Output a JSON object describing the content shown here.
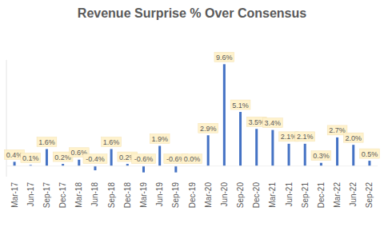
{
  "chart_data": {
    "type": "bar",
    "title": "Revenue Surprise % Over Consensus",
    "categories": [
      "Mar-17",
      "Jun-17",
      "Sep-17",
      "Dec-17",
      "Mar-18",
      "Jun-18",
      "Sep-18",
      "Dec-18",
      "Mar-19",
      "Jun-19",
      "Sep-19",
      "Dec-19",
      "Mar-20",
      "Jun-20",
      "Sep-20",
      "Dec-20",
      "Mar-21",
      "Jun-21",
      "Sep-21",
      "Dec-21",
      "Mar-22",
      "Jun-22",
      "Sep-22"
    ],
    "values": [
      0.4,
      0.1,
      1.6,
      0.2,
      0.6,
      -0.4,
      1.6,
      0.2,
      -0.6,
      1.9,
      -0.6,
      0.0,
      2.9,
      9.6,
      5.1,
      3.5,
      3.4,
      2.1,
      2.1,
      0.3,
      2.7,
      2.0,
      0.5
    ],
    "value_labels": [
      "0.4%",
      "0.1%",
      "1.6%",
      "0.2%",
      "0.6%",
      "-0.4%",
      "1.6%",
      "0.2%",
      "-0.6%",
      "1.9%",
      "-0.6%",
      "0.0%",
      "2.9%",
      "9.6%",
      "5.1%",
      "3.5%",
      "3.4%",
      "2.1%",
      "2.1%",
      "0.3%",
      "2.7%",
      "2.0%",
      "0.5%"
    ],
    "color": "#4472c4",
    "ylim": [
      -1,
      10
    ],
    "data_labels": true,
    "tick_labels": "x",
    "grid": false
  }
}
